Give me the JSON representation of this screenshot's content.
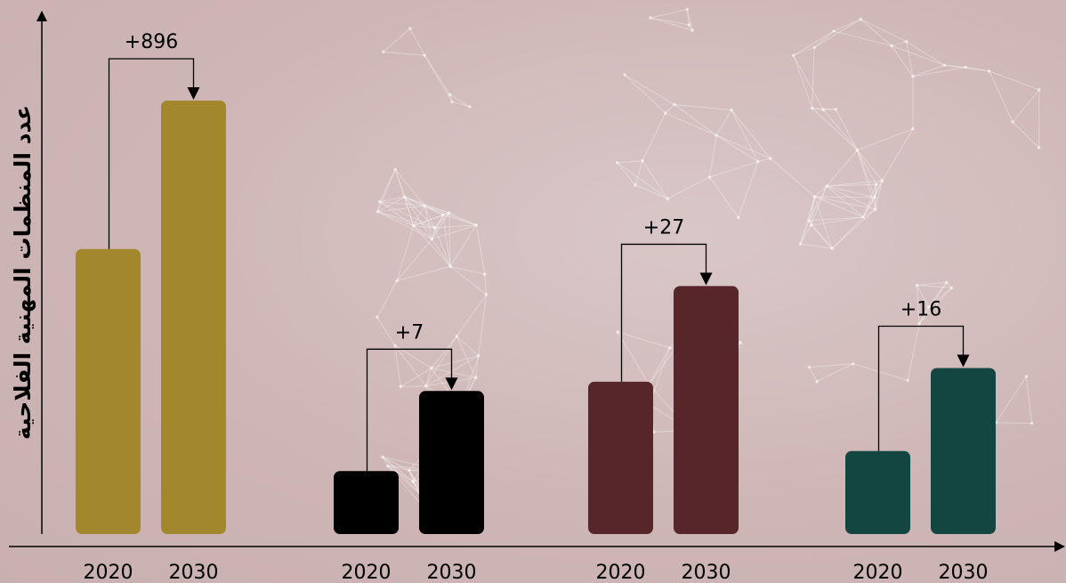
{
  "chart_data": {
    "type": "bar",
    "ylabel": "عدد المنظمات المهنية الفلاحية",
    "xlabel": "",
    "groups": [
      {
        "categories": [
          "2020",
          "2030"
        ],
        "values": [
          1720,
          2616
        ],
        "delta_label": "+896",
        "color": "#a3872d"
      },
      {
        "categories": [
          "2020",
          "2030"
        ],
        "values": [
          5.5,
          12.5
        ],
        "delta_label": "+7",
        "color": "#000000"
      },
      {
        "categories": [
          "2020",
          "2030"
        ],
        "values": [
          43,
          70
        ],
        "delta_label": "+27",
        "color": "#56262a"
      },
      {
        "categories": [
          "2020",
          "2030"
        ],
        "values": [
          16,
          32
        ],
        "delta_label": "+16",
        "color": "#134641"
      }
    ]
  }
}
